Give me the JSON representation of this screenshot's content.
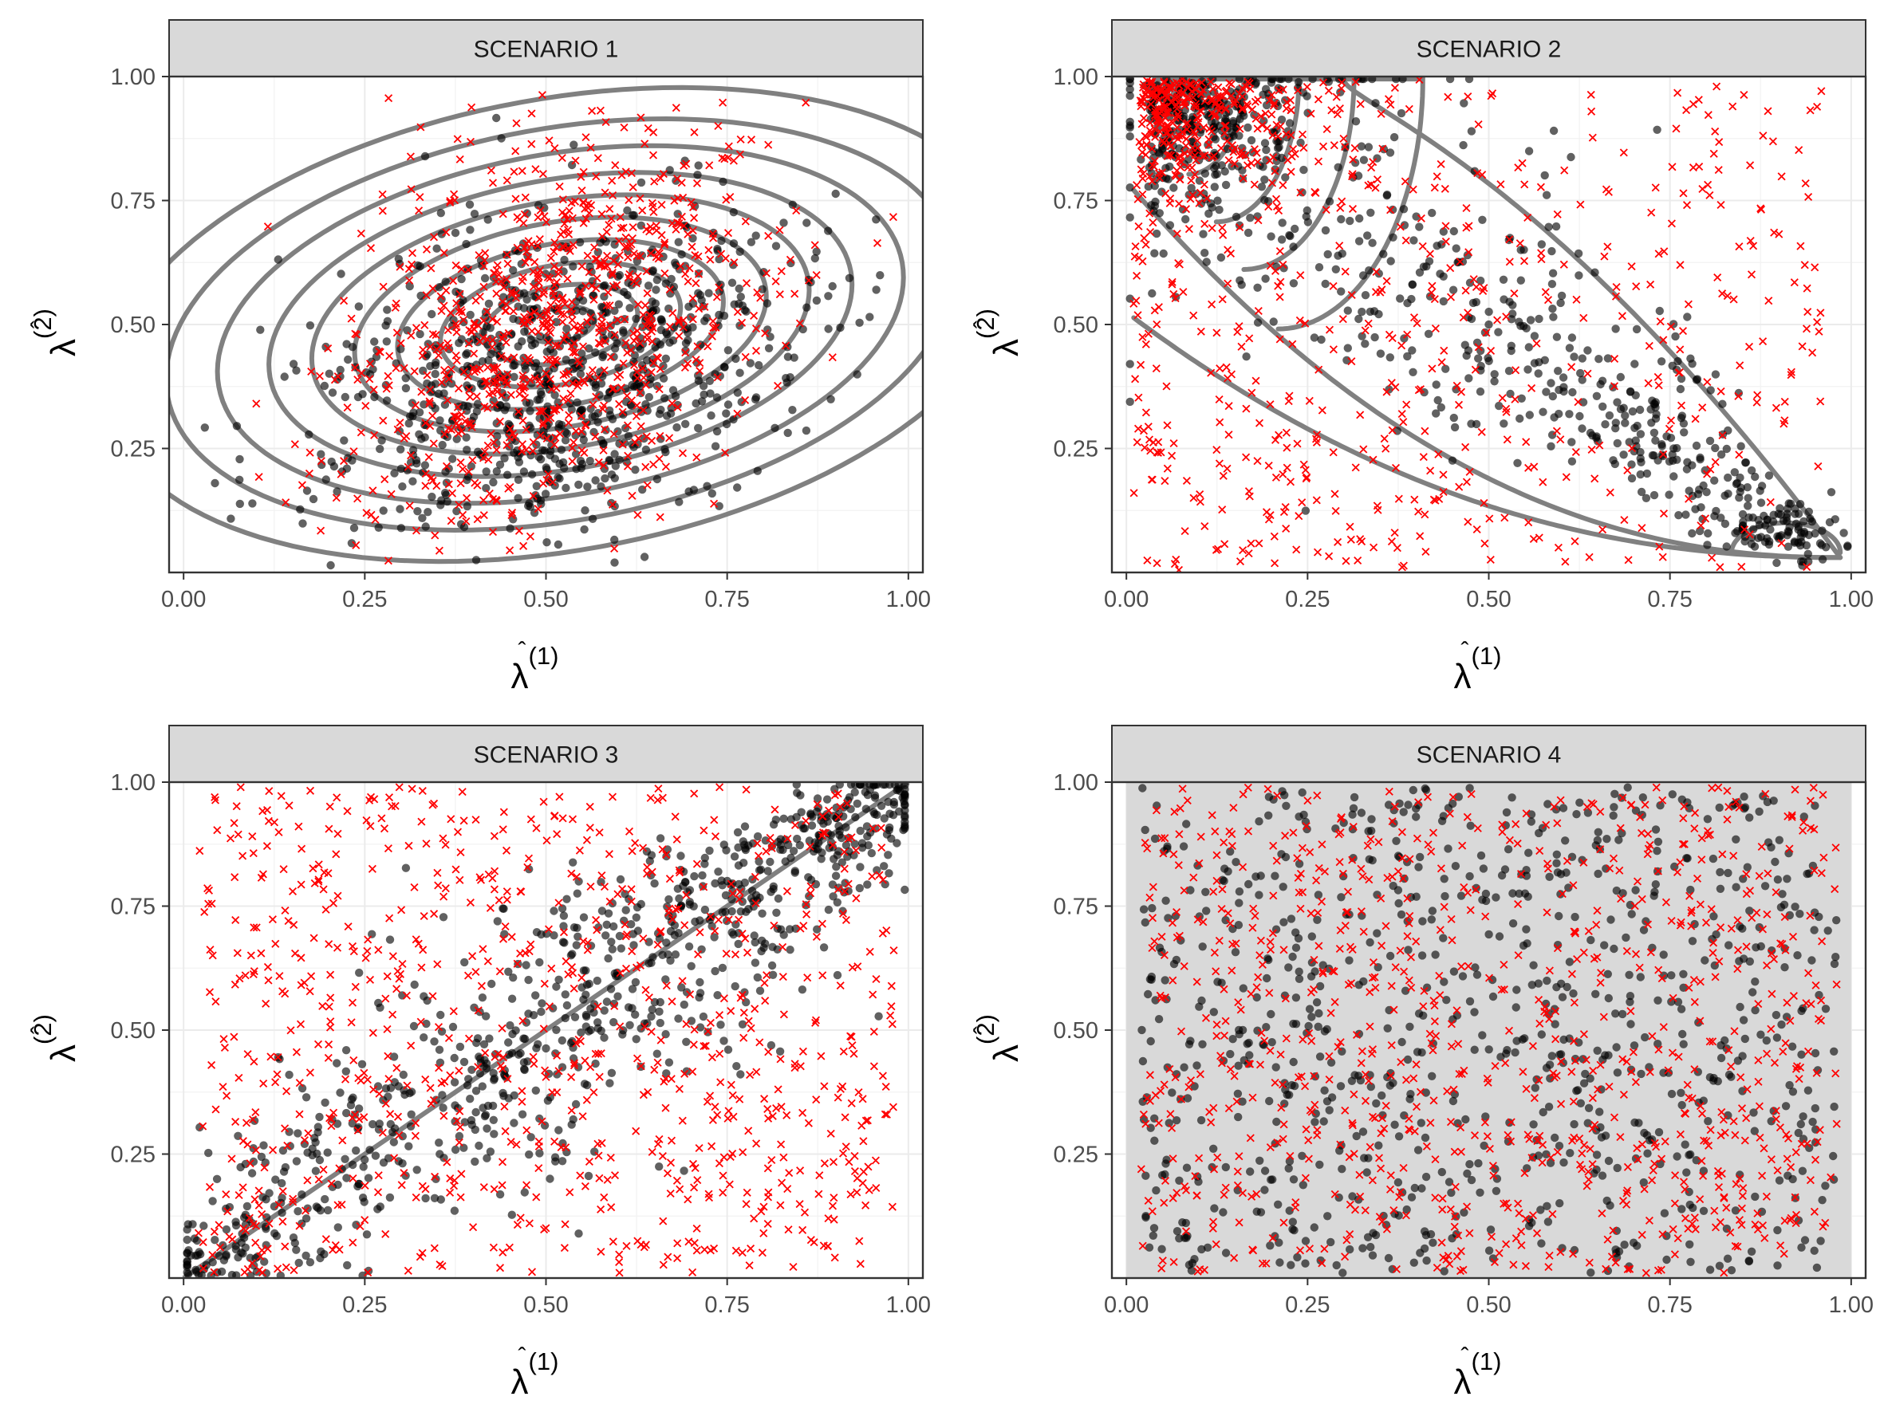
{
  "figure": {
    "x_axis_label": "λ̂(1)",
    "y_axis_label": "λ̂(2)"
  },
  "chart_data": [
    {
      "type": "scatter",
      "panel": "SCENARIO 1",
      "title": "SCENARIO 1",
      "xlabel_symbol": "λ",
      "xlabel_superscript": "(1)",
      "ylabel_symbol": "λ",
      "ylabel_superscript": "(2)",
      "xlim": [
        -0.02,
        1.02
      ],
      "ylim": [
        0.0,
        1.0
      ],
      "xticks": [
        0.0,
        0.25,
        0.5,
        0.75,
        1.0
      ],
      "xtick_labels": [
        "0.00",
        "0.25",
        "0.50",
        "0.75",
        "1.00"
      ],
      "yticks": [
        0.25,
        0.5,
        0.75,
        1.0
      ],
      "ytick_labels": [
        "0.25",
        "0.50",
        "0.75",
        "1.00"
      ],
      "grid": true,
      "contours": "elliptical density contours centred near (0.52, 0.52), positively correlated",
      "series": [
        {
          "marker": "circle",
          "color": "#000000",
          "n": 850,
          "distribution": {
            "kind": "gaussian",
            "mean": [
              0.52,
              0.4
            ],
            "sd": [
              0.17,
              0.17
            ],
            "rho": 0.35
          }
        },
        {
          "marker": "cross",
          "color": "#ff0000",
          "n": 850,
          "distribution": {
            "kind": "gaussian",
            "mean": [
              0.5,
              0.5
            ],
            "sd": [
              0.15,
              0.2
            ],
            "rho": 0.3
          }
        }
      ]
    },
    {
      "type": "scatter",
      "panel": "SCENARIO 2",
      "title": "SCENARIO 2",
      "xlabel_symbol": "λ",
      "xlabel_superscript": "(1)",
      "ylabel_symbol": "λ",
      "ylabel_superscript": "(2)",
      "xlim": [
        -0.02,
        1.02
      ],
      "ylim": [
        0.0,
        1.0
      ],
      "xticks": [
        0.0,
        0.25,
        0.5,
        0.75,
        1.0
      ],
      "xtick_labels": [
        "0.00",
        "0.25",
        "0.50",
        "0.75",
        "1.00"
      ],
      "yticks": [
        0.25,
        0.5,
        0.75,
        1.0
      ],
      "ytick_labels": [
        "0.25",
        "0.50",
        "0.75",
        "1.00"
      ],
      "grid": true,
      "contours": "teardrop contours peaking near (0.05, 0.97) with a secondary lobe near (0.95, 0.05)",
      "series": [
        {
          "marker": "circle",
          "color": "#000000",
          "n": 850,
          "distribution": {
            "kind": "teardrop",
            "dense_corner": [
              0.05,
              0.97
            ],
            "tail_to": [
              0.97,
              0.03
            ]
          }
        },
        {
          "marker": "cross",
          "color": "#ff0000",
          "n": 850,
          "distribution": {
            "kind": "dense_top_left_plus_uniform",
            "dense_corner": [
              0.05,
              0.97
            ]
          }
        }
      ]
    },
    {
      "type": "scatter",
      "panel": "SCENARIO 3",
      "title": "SCENARIO 3",
      "xlabel_symbol": "λ",
      "xlabel_superscript": "(1)",
      "ylabel_symbol": "λ",
      "ylabel_superscript": "(2)",
      "xlim": [
        -0.02,
        1.02
      ],
      "ylim": [
        0.0,
        1.0
      ],
      "xticks": [
        0.0,
        0.25,
        0.5,
        0.75,
        1.0
      ],
      "xtick_labels": [
        "0.00",
        "0.25",
        "0.50",
        "0.75",
        "1.00"
      ],
      "yticks": [
        0.25,
        0.5,
        0.75,
        1.0
      ],
      "ytick_labels": [
        "0.25",
        "0.50",
        "0.75",
        "1.00"
      ],
      "grid": true,
      "reference_line": {
        "from": [
          0.0,
          0.0
        ],
        "to": [
          1.0,
          1.0
        ]
      },
      "series": [
        {
          "marker": "circle",
          "color": "#000000",
          "n": 850,
          "distribution": {
            "kind": "near_diagonal",
            "spread": 0.09
          }
        },
        {
          "marker": "cross",
          "color": "#ff0000",
          "n": 850,
          "distribution": {
            "kind": "uniform"
          }
        }
      ]
    },
    {
      "type": "scatter",
      "panel": "SCENARIO 4",
      "title": "SCENARIO 4",
      "xlabel_symbol": "λ",
      "xlabel_superscript": "(1)",
      "ylabel_symbol": "λ",
      "ylabel_superscript": "(2)",
      "xlim": [
        -0.02,
        1.02
      ],
      "ylim": [
        0.0,
        1.0
      ],
      "xticks": [
        0.0,
        0.25,
        0.5,
        0.75,
        1.0
      ],
      "xtick_labels": [
        "0.00",
        "0.25",
        "0.50",
        "0.75",
        "1.00"
      ],
      "yticks": [
        0.25,
        0.5,
        0.75,
        1.0
      ],
      "ytick_labels": [
        "0.25",
        "0.50",
        "0.75",
        "1.00"
      ],
      "grid": true,
      "shaded_region": {
        "x": [
          0.0,
          1.0
        ],
        "y": [
          0.0,
          1.0
        ],
        "color": "#d9d9d9"
      },
      "series": [
        {
          "marker": "circle",
          "color": "#000000",
          "n": 850,
          "distribution": {
            "kind": "uniform"
          }
        },
        {
          "marker": "cross",
          "color": "#ff0000",
          "n": 850,
          "distribution": {
            "kind": "uniform"
          }
        }
      ]
    }
  ]
}
